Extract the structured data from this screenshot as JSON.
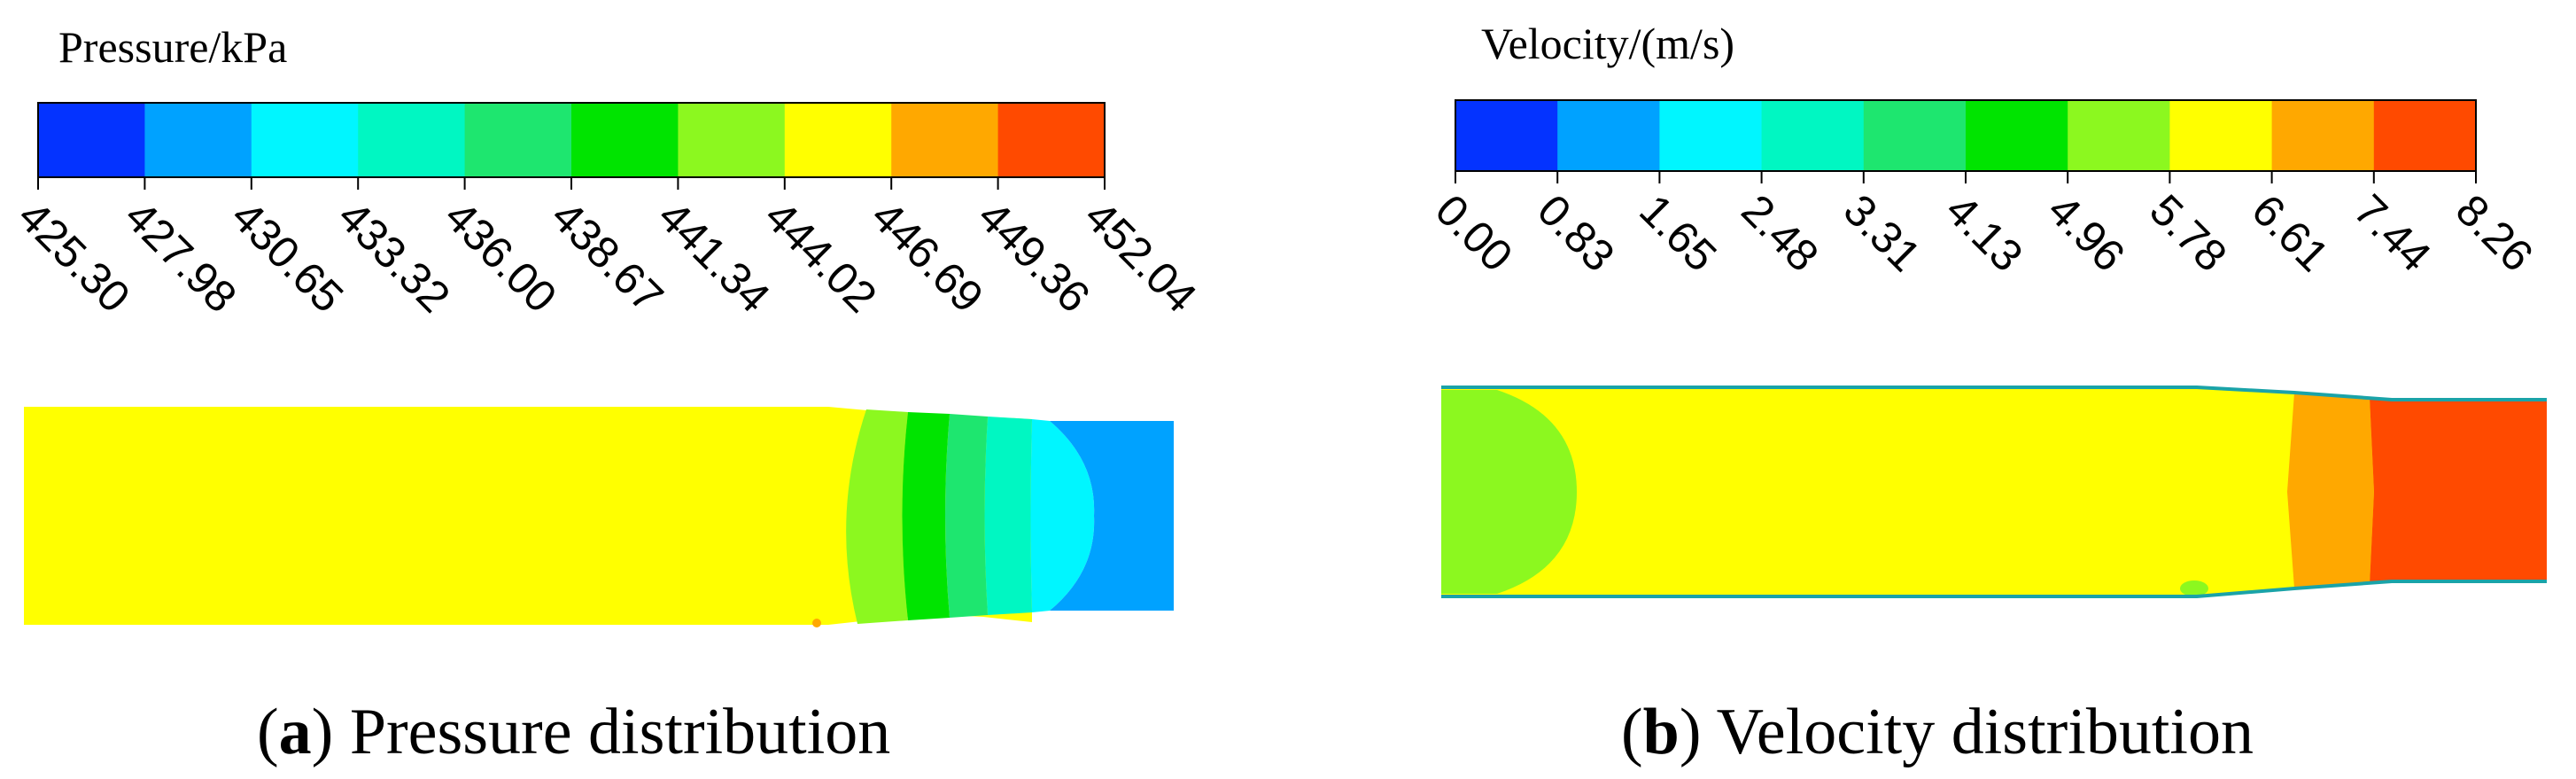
{
  "palette": [
    "#0433ff",
    "#00a2ff",
    "#00f6ff",
    "#00f7c2",
    "#1ee66f",
    "#00e400",
    "#8cf81f",
    "#ffff00",
    "#ffa800",
    "#ff4a00"
  ],
  "outline_color": "#1aa3a8",
  "panel_a": {
    "title": "Pressure/kPa",
    "ticks": [
      "425.30",
      "427.98",
      "430.65",
      "433.32",
      "436.00",
      "438.67",
      "441.34",
      "444.02",
      "446.69",
      "449.36",
      "452.04"
    ],
    "caption_letter": "a",
    "caption_text": "Pressure distribution"
  },
  "panel_b": {
    "title": "Velocity/(m/s)",
    "ticks": [
      "0.00",
      "0.83",
      "1.65",
      "2.48",
      "3.31",
      "4.13",
      "4.96",
      "5.78",
      "6.61",
      "7.44",
      "8.26"
    ],
    "caption_letter": "b",
    "caption_text": "Velocity distribution"
  }
}
